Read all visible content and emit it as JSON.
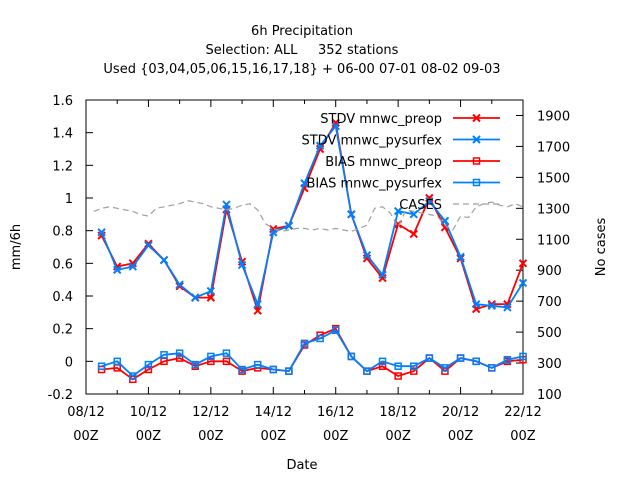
{
  "chart_data": {
    "type": "line",
    "title_lines": [
      "6h Precipitation",
      "Selection: ALL     352 stations",
      "Used {03,04,05,06,15,16,17,18} + 06-00 07-01 08-02 09-03"
    ],
    "xlabel": "Date",
    "ylabel": "mm/6h",
    "y2label": "No cases",
    "ylim": [
      -0.2,
      1.6
    ],
    "y2lim": [
      100,
      2000
    ],
    "yticks": [
      "-0.2",
      "0",
      "0.2",
      "0.4",
      "0.6",
      "0.8",
      "1",
      "1.2",
      "1.4",
      "1.6"
    ],
    "y2ticks": [
      "100",
      "300",
      "500",
      "700",
      "900",
      "1100",
      "1300",
      "1500",
      "1700",
      "1900"
    ],
    "xticks_line1": [
      "08/12",
      "10/12",
      "12/12",
      "14/12",
      "16/12",
      "18/12",
      "20/12",
      "22/12"
    ],
    "xticks_line2": [
      "00Z",
      "00Z",
      "00Z",
      "00Z",
      "00Z",
      "00Z",
      "00Z",
      "00Z"
    ],
    "legend_position": "top-right",
    "grid": false,
    "x_hours_from_08_12_00Z": [
      6,
      12,
      18,
      24,
      30,
      36,
      42,
      48,
      54,
      60,
      66,
      72,
      78,
      84,
      90,
      96,
      102,
      108,
      114,
      120,
      126,
      132,
      138,
      144,
      150,
      156,
      162,
      168,
      174,
      180,
      186,
      192,
      198,
      204,
      210,
      216,
      222,
      228,
      234,
      240,
      246,
      252,
      258,
      264,
      270,
      276,
      282,
      288,
      294,
      300,
      306,
      312,
      318,
      324,
      330,
      336
    ],
    "series": [
      {
        "name": "STDV mnwc_preop",
        "color": "#ff0000",
        "marker": "x",
        "axis": "left",
        "x_days": [
          0.5,
          1,
          1.5,
          2,
          2.5,
          3,
          3.5,
          4,
          4.5,
          5,
          5.5,
          6,
          6.5,
          7,
          7.5,
          8,
          8.5,
          9,
          9.5,
          10,
          10.5,
          11,
          11.5,
          12,
          12.5,
          13,
          13.5,
          14
        ],
        "values": [
          0.77,
          0.58,
          0.6,
          0.72,
          0.62,
          0.46,
          0.39,
          0.39,
          0.93,
          0.61,
          0.31,
          0.81,
          0.83,
          1.06,
          1.3,
          1.46,
          0.9,
          0.63,
          0.51,
          0.84,
          0.78,
          1.0,
          0.82,
          0.63,
          0.32,
          0.35,
          0.35,
          0.6
        ]
      },
      {
        "name": "STDV mnwc_pysurfex",
        "color": "#0080ff",
        "marker": "x",
        "axis": "left",
        "x_days": [
          0.5,
          1,
          1.5,
          2,
          2.5,
          3,
          3.5,
          4,
          4.5,
          5,
          5.5,
          6,
          6.5,
          7,
          7.5,
          8,
          8.5,
          9,
          9.5,
          10,
          10.5,
          11,
          11.5,
          12,
          12.5,
          13,
          13.5,
          14
        ],
        "values": [
          0.79,
          0.56,
          0.58,
          0.71,
          0.62,
          0.47,
          0.39,
          0.43,
          0.96,
          0.59,
          0.35,
          0.79,
          0.83,
          1.09,
          1.32,
          1.44,
          0.9,
          0.65,
          0.53,
          0.92,
          0.9,
          0.98,
          0.86,
          0.64,
          0.35,
          0.34,
          0.33,
          0.48
        ]
      },
      {
        "name": "BIAS mnwc_preop",
        "color": "#ff0000",
        "marker": "square",
        "axis": "left",
        "x_days": [
          0.5,
          1,
          1.5,
          2,
          2.5,
          3,
          3.5,
          4,
          4.5,
          5,
          5.5,
          6,
          6.5,
          7,
          7.5,
          8,
          8.5,
          9,
          9.5,
          10,
          10.5,
          11,
          11.5,
          12,
          12.5,
          13,
          13.5,
          14
        ],
        "values": [
          -0.05,
          -0.04,
          -0.11,
          -0.05,
          0.0,
          0.02,
          -0.03,
          0.0,
          0.0,
          -0.06,
          -0.04,
          -0.05,
          -0.06,
          0.1,
          0.16,
          0.2,
          0.03,
          -0.06,
          -0.03,
          -0.09,
          -0.06,
          0.02,
          -0.06,
          0.02,
          0.0,
          -0.04,
          0.0,
          0.01
        ]
      },
      {
        "name": "BIAS mnwc_pysurfex",
        "color": "#0080ff",
        "marker": "square",
        "axis": "left",
        "x_days": [
          0.5,
          1,
          1.5,
          2,
          2.5,
          3,
          3.5,
          4,
          4.5,
          5,
          5.5,
          6,
          6.5,
          7,
          7.5,
          8,
          8.5,
          9,
          9.5,
          10,
          10.5,
          11,
          11.5,
          12,
          12.5,
          13,
          13.5,
          14
        ],
        "values": [
          -0.03,
          0.0,
          -0.09,
          -0.02,
          0.04,
          0.05,
          -0.02,
          0.03,
          0.05,
          -0.05,
          -0.02,
          -0.05,
          -0.06,
          0.11,
          0.14,
          0.19,
          0.03,
          -0.06,
          0.0,
          -0.03,
          -0.03,
          0.02,
          -0.04,
          0.02,
          0.0,
          -0.04,
          0.01,
          0.03
        ]
      },
      {
        "name": "CASES",
        "color": "#a0a0a0",
        "marker": "none",
        "dash": true,
        "axis": "right",
        "values": [
          1280,
          1300,
          1310,
          1300,
          1290,
          1280,
          1260,
          1250,
          1300,
          1310,
          1320,
          1330,
          1350,
          1340,
          1330,
          1310,
          1300,
          1290,
          1300,
          1320,
          1330,
          1290,
          1200,
          1170,
          1150,
          1160,
          1170,
          1170,
          1160,
          1170,
          1160,
          1170,
          1160,
          1150,
          1170,
          1190,
          1300,
          1310,
          1270,
          1180,
          1290,
          1280,
          1270,
          1260,
          1250,
          1190,
          1160,
          1250,
          1240,
          1310,
          1330,
          1340,
          1320,
          1310,
          1330,
          1310
        ]
      }
    ]
  }
}
